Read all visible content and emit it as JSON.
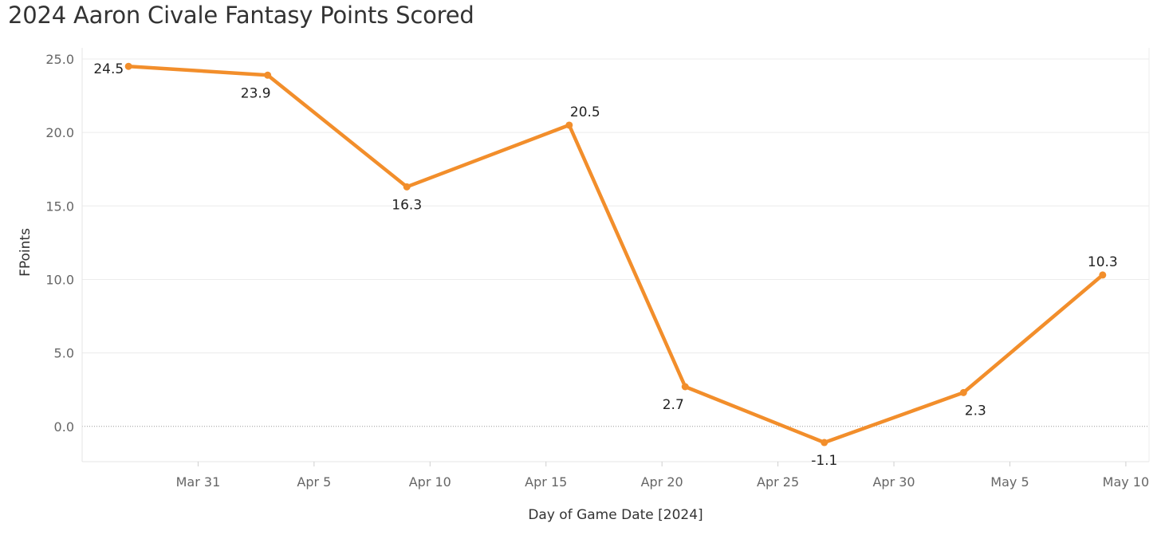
{
  "title": "2024 Aaron Civale Fantasy Points Scored",
  "chart_data": {
    "type": "line",
    "title": "2024 Aaron Civale Fantasy Points Scored",
    "xlabel": "Day of Game Date [2024]",
    "ylabel": "FPoints",
    "x_ticks": [
      {
        "date": "2024-03-31",
        "label": "Mar 31"
      },
      {
        "date": "2024-04-05",
        "label": "Apr 5"
      },
      {
        "date": "2024-04-10",
        "label": "Apr 10"
      },
      {
        "date": "2024-04-15",
        "label": "Apr 15"
      },
      {
        "date": "2024-04-20",
        "label": "Apr 20"
      },
      {
        "date": "2024-04-25",
        "label": "Apr 25"
      },
      {
        "date": "2024-04-30",
        "label": "Apr 30"
      },
      {
        "date": "2024-05-05",
        "label": "May 5"
      },
      {
        "date": "2024-05-10",
        "label": "May 10"
      }
    ],
    "y_ticks": [
      "0.0",
      "5.0",
      "10.0",
      "15.0",
      "20.0",
      "25.0"
    ],
    "ylim": [
      -2.4,
      25.0
    ],
    "xlim": [
      "2024-03-26",
      "2024-05-11"
    ],
    "grid": true,
    "line_color": "#f28e2b",
    "points": [
      {
        "x": "2024-03-28",
        "y": 24.5,
        "label": "24.5"
      },
      {
        "x": "2024-04-03",
        "y": 23.9,
        "label": "23.9"
      },
      {
        "x": "2024-04-09",
        "y": 16.3,
        "label": "16.3"
      },
      {
        "x": "2024-04-16",
        "y": 20.5,
        "label": "20.5"
      },
      {
        "x": "2024-04-21",
        "y": 2.7,
        "label": "2.7"
      },
      {
        "x": "2024-04-27",
        "y": -1.1,
        "label": "-1.1"
      },
      {
        "x": "2024-05-03",
        "y": 2.3,
        "label": "2.3"
      },
      {
        "x": "2024-05-09",
        "y": 10.3,
        "label": "10.3"
      }
    ]
  }
}
